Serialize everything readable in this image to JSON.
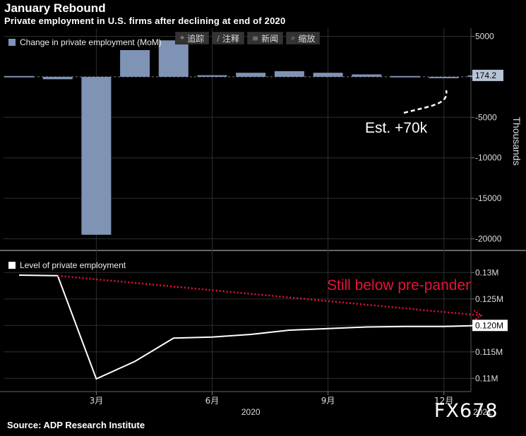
{
  "title": "January Rebound",
  "subtitle": "Private employment in U.S. firms after declining at end of 2020",
  "source": "Source: ADP Research Institute",
  "watermark": "FX678",
  "toolbar": [
    {
      "icon": "crosshair-icon",
      "glyph": "⌖",
      "label": "追踪"
    },
    {
      "icon": "pencil-icon",
      "glyph": "∕",
      "label": "注释"
    },
    {
      "icon": "news-icon",
      "glyph": "≡",
      "label": "新闻"
    },
    {
      "icon": "zoom-icon",
      "glyph": "⌕",
      "label": "缩放"
    }
  ],
  "colors": {
    "bar": "#7f93b5",
    "line": "#ffffff",
    "annotation": "#e8123c",
    "grid": "#2e2e2e"
  },
  "chart_data": [
    {
      "type": "bar",
      "legend": "Change in private employment (MoM)",
      "ylabel": "Thousands",
      "ylim": [
        -21000,
        6000
      ],
      "yticks": [
        5000,
        0,
        -5000,
        -10000,
        -15000,
        -20000
      ],
      "ytick_labels": [
        "5000",
        "",
        "-5000",
        "-10000",
        "-15000",
        "-20000"
      ],
      "categories": [
        "2020-01",
        "2020-02",
        "2020-03",
        "2020-04",
        "2020-05",
        "2020-06",
        "2020-07",
        "2020-08",
        "2020-09",
        "2020-10",
        "2020-11",
        "2020-12",
        "2021-01"
      ],
      "values": [
        100,
        -300,
        -19500,
        3300,
        4500,
        200,
        500,
        700,
        500,
        300,
        100,
        -120,
        174.2
      ],
      "last_value_label": "174.2",
      "annotation": "Est. +70k"
    },
    {
      "type": "line",
      "legend": "Level of private employment",
      "ylim": [
        0.1075,
        0.1335
      ],
      "yticks": [
        0.13,
        0.125,
        0.12,
        0.115,
        0.11
      ],
      "ytick_labels": [
        "0.13M",
        "0.125M",
        "",
        "0.115M",
        "0.11M"
      ],
      "x": [
        "2020-01",
        "2020-02",
        "2020-03",
        "2020-04",
        "2020-05",
        "2020-06",
        "2020-07",
        "2020-08",
        "2020-09",
        "2020-10",
        "2020-11",
        "2020-12",
        "2021-01"
      ],
      "values": [
        0.1295,
        0.1294,
        0.1099,
        0.1132,
        0.1176,
        0.1178,
        0.1183,
        0.1191,
        0.1194,
        0.1197,
        0.1198,
        0.1198,
        0.12
      ],
      "last_value_label": "0.120M",
      "annotation": "Still below pre-pandemic"
    }
  ],
  "xaxis": {
    "month_ticks": [
      {
        "x": "2020-03",
        "label": "3月"
      },
      {
        "x": "2020-06",
        "label": "6月"
      },
      {
        "x": "2020-09",
        "label": "9月"
      },
      {
        "x": "2020-12",
        "label": "12月"
      }
    ],
    "year_labels": [
      {
        "x": "2020-07",
        "label": "2020"
      },
      {
        "x": "2021-01",
        "label": "2021"
      }
    ]
  }
}
